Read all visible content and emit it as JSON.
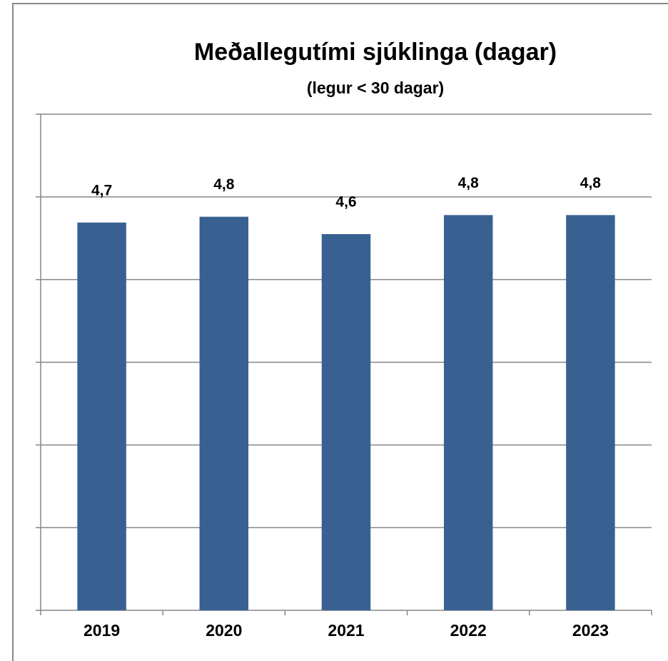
{
  "chart_data": {
    "type": "bar",
    "title": "Meðallegutími sjúklinga (dagar)",
    "subtitle": "(legur < 30 dagar)",
    "categories": [
      "2019",
      "2020",
      "2021",
      "2022",
      "2023"
    ],
    "values": [
      4.69,
      4.76,
      4.55,
      4.78,
      4.78
    ],
    "value_labels": [
      "4,7",
      "4,8",
      "4,6",
      "4,8",
      "4,8"
    ],
    "color": "#386192",
    "ylim": [
      0,
      6
    ],
    "yticks": [
      0,
      1,
      2,
      3,
      4,
      5,
      6
    ],
    "grid": true
  }
}
